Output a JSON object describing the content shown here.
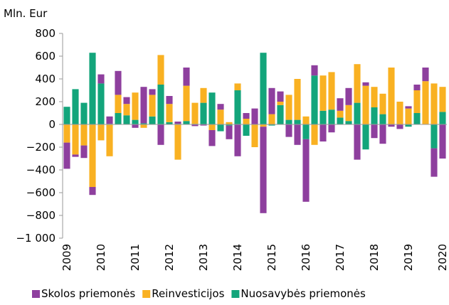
{
  "chart_data": {
    "type": "bar",
    "stacked": true,
    "y_axis_label": "Mln. Eur",
    "categories": [
      "2009",
      null,
      null,
      null,
      "2010",
      null,
      null,
      null,
      "2011",
      null,
      null,
      null,
      "2012",
      null,
      null,
      null,
      "2013",
      null,
      null,
      null,
      "2014",
      null,
      null,
      null,
      "2015",
      null,
      null,
      null,
      "2016",
      null,
      null,
      null,
      "2017",
      null,
      null,
      null,
      "2018",
      null,
      null,
      null,
      "2019",
      null,
      null,
      null,
      "2020"
    ],
    "series": [
      {
        "name": "Skolos priemonės",
        "color": "#8e3f9e",
        "values": [
          -230,
          -20,
          -110,
          -70,
          80,
          65,
          210,
          60,
          -30,
          320,
          50,
          -180,
          70,
          20,
          160,
          -15,
          -10,
          -140,
          50,
          -120,
          -280,
          50,
          140,
          -760,
          230,
          90,
          -110,
          -180,
          -550,
          90,
          -150,
          -70,
          110,
          150,
          -310,
          30,
          -120,
          -170,
          -20,
          -40,
          20,
          50,
          120,
          -250,
          -300
        ]
      },
      {
        "name": "Reinvesticijos",
        "color": "#f9b122",
        "values": [
          -160,
          -265,
          -185,
          -550,
          -140,
          -280,
          160,
          100,
          240,
          -30,
          190,
          260,
          160,
          -310,
          310,
          185,
          130,
          -50,
          130,
          20,
          60,
          50,
          -200,
          -20,
          90,
          30,
          220,
          360,
          70,
          -180,
          310,
          330,
          60,
          140,
          340,
          340,
          180,
          180,
          500,
          200,
          140,
          200,
          380,
          360,
          220
        ]
      },
      {
        "name": "Nuosavybės priemonės",
        "color": "#13a57b",
        "values": [
          155,
          310,
          190,
          630,
          360,
          5,
          100,
          80,
          40,
          10,
          70,
          350,
          20,
          5,
          30,
          5,
          190,
          280,
          -60,
          -10,
          300,
          -100,
          0,
          630,
          -10,
          170,
          40,
          40,
          -130,
          430,
          120,
          130,
          60,
          30,
          190,
          -220,
          150,
          90,
          0,
          0,
          -20,
          100,
          0,
          -210,
          110
        ]
      }
    ],
    "ylim": [
      -1000,
      800
    ],
    "yticks": [
      {
        "value": -1000,
        "label": "−1 000"
      },
      {
        "value": -800,
        "label": "−800"
      },
      {
        "value": -600,
        "label": "−600"
      },
      {
        "value": -400,
        "label": "−400"
      },
      {
        "value": -200,
        "label": "−200"
      },
      0,
      200,
      400,
      600,
      800
    ],
    "legend": "bottom"
  }
}
